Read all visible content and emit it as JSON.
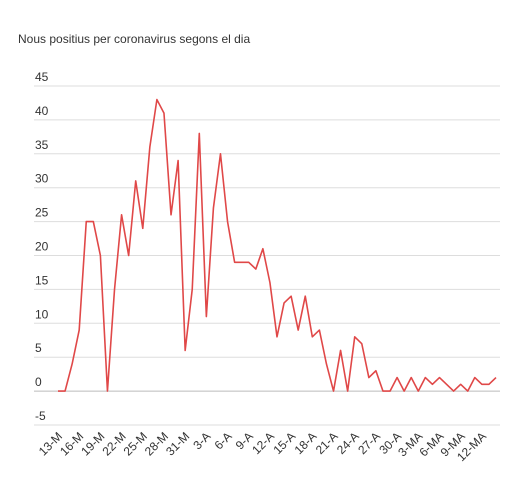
{
  "chart_data": {
    "type": "line",
    "title": "Nous positius per coronavirus segons el dia",
    "xlabel": "",
    "ylabel": "",
    "ylim": [
      -5,
      45
    ],
    "yticks": [
      -5,
      0,
      5,
      10,
      15,
      20,
      25,
      30,
      35,
      40,
      45
    ],
    "grid": true,
    "legend": "none",
    "line_color": "#e04848",
    "tick_labels": [
      "13-M",
      "16-M",
      "19-M",
      "22-M",
      "25-M",
      "28-M",
      "31-M",
      "3-A",
      "6-A",
      "9-A",
      "12-A",
      "15-A",
      "18-A",
      "21-A",
      "24-A",
      "27-A",
      "30-A",
      "3-MA",
      "6-MA",
      "9-MA",
      "12-MA"
    ],
    "series": [
      {
        "values": [
          0,
          0,
          4,
          9,
          25,
          25,
          20,
          0,
          15,
          26,
          20,
          31,
          24,
          36,
          43,
          41,
          26,
          34,
          6,
          15,
          38,
          11,
          27,
          35,
          25,
          19,
          19,
          19,
          18,
          21,
          16,
          8,
          13,
          14,
          9,
          14,
          8,
          9,
          4,
          0,
          6,
          0,
          8,
          7,
          2,
          3,
          0,
          0,
          2,
          0,
          2,
          0,
          2,
          1,
          2,
          1,
          0,
          1,
          0,
          2,
          1,
          1,
          2
        ]
      }
    ]
  }
}
